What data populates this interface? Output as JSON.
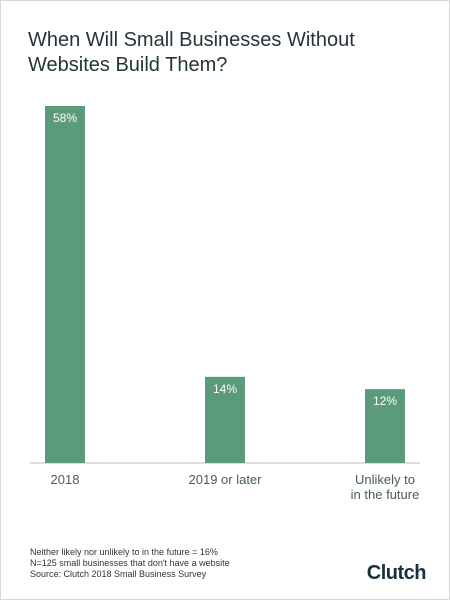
{
  "chart_data": {
    "type": "bar",
    "title": "When Will Small Businesses Without Websites Build Them?",
    "categories": [
      "2018",
      "2019 or later",
      "Unlikely to\nin the future"
    ],
    "values": [
      58,
      14,
      12
    ],
    "value_labels": [
      "58%",
      "14%",
      "12%"
    ],
    "ylim": [
      0,
      58
    ],
    "grid": false,
    "legend": "none",
    "bar_color": "#5c9a7c"
  },
  "footer": {
    "lines": [
      "Neither likely nor unlikely to in the future = 16%",
      "N=125 small businesses that don't have a website",
      "Source: Clutch 2018 Small Business Survey"
    ]
  },
  "brand": {
    "name": "Clutch"
  }
}
